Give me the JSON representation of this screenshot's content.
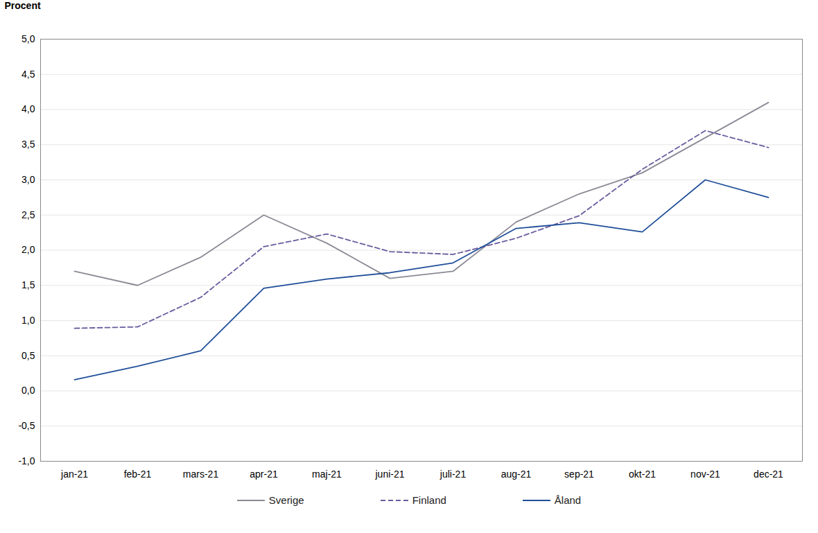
{
  "chart_data": {
    "type": "line",
    "y_label": "Procent",
    "categories": [
      "jan-21",
      "feb-21",
      "mars-21",
      "apr-21",
      "maj-21",
      "juni-21",
      "juli-21",
      "aug-21",
      "sep-21",
      "okt-21",
      "nov-21",
      "dec-21"
    ],
    "series": [
      {
        "name": "Sverige",
        "color": "#8a8a96",
        "line_style": "solid",
        "values": [
          1.7,
          1.5,
          1.9,
          2.5,
          2.1,
          1.6,
          1.7,
          2.4,
          2.8,
          3.1,
          3.6,
          4.1
        ]
      },
      {
        "name": "Finland",
        "color": "#6a5a9e",
        "line_style": "dashed",
        "values": [
          0.89,
          0.91,
          1.33,
          2.05,
          2.23,
          1.98,
          1.94,
          2.17,
          2.49,
          3.15,
          3.7,
          3.46
        ]
      },
      {
        "name": "Åland",
        "color": "#1f4e99",
        "line_style": "solid",
        "values": [
          0.16,
          0.35,
          0.57,
          1.46,
          1.59,
          1.68,
          1.82,
          2.31,
          2.39,
          2.26,
          3.0,
          2.75
        ]
      }
    ],
    "ylim": [
      -1.0,
      5.0
    ],
    "yticks": [
      {
        "value": -1.0,
        "label": "-1,0"
      },
      {
        "value": -0.5,
        "label": "-0,5"
      },
      {
        "value": 0,
        "label": "0,0"
      },
      {
        "value": 0.5,
        "label": "0,5"
      },
      {
        "value": 1.0,
        "label": "1,0"
      },
      {
        "value": 1.5,
        "label": "1,5"
      },
      {
        "value": 2.0,
        "label": "2,0"
      },
      {
        "value": 2.5,
        "label": "2,5"
      },
      {
        "value": 3.0,
        "label": "3,0"
      },
      {
        "value": 3.5,
        "label": "3,5"
      },
      {
        "value": 4.0,
        "label": "4,0"
      },
      {
        "value": 4.5,
        "label": "4,5"
      },
      {
        "value": 5.0,
        "label": "5,0"
      }
    ],
    "grid": true,
    "legend": "bottom"
  }
}
